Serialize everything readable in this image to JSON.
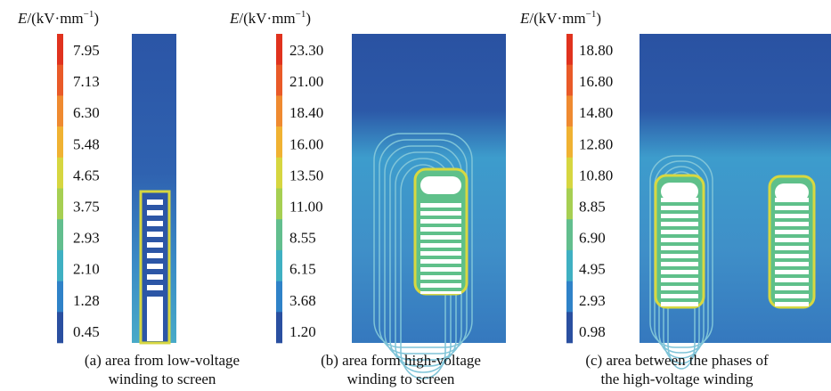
{
  "panels": [
    {
      "label": {
        "symbol": "E",
        "unit": "/(kV·mm",
        "exponent": "−1",
        "close": ")"
      },
      "ticks": [
        "7.95",
        "7.13",
        "6.30",
        "5.48",
        "4.65",
        "3.75",
        "2.93",
        "2.10",
        "1.28",
        "0.45"
      ],
      "caption": [
        "(a) area from low-voltage",
        "winding to screen"
      ]
    },
    {
      "label": {
        "symbol": "E",
        "unit": "/(kV·mm",
        "exponent": "−1",
        "close": ")"
      },
      "ticks": [
        "23.30",
        "21.00",
        "18.40",
        "16.00",
        "13.50",
        "11.00",
        "8.55",
        "6.15",
        "3.68",
        "1.20"
      ],
      "caption": [
        "(b) area form high-voltage",
        "winding to screen"
      ]
    },
    {
      "label": {
        "symbol": "E",
        "unit": "/(kV·mm",
        "exponent": "−1",
        "close": ")"
      },
      "ticks": [
        "18.80",
        "16.80",
        "14.80",
        "12.80",
        "10.80",
        "8.85",
        "6.90",
        "4.95",
        "2.93",
        "0.98"
      ],
      "caption": [
        "(c) area between the phases of",
        "the high-voltage winding"
      ]
    }
  ]
}
